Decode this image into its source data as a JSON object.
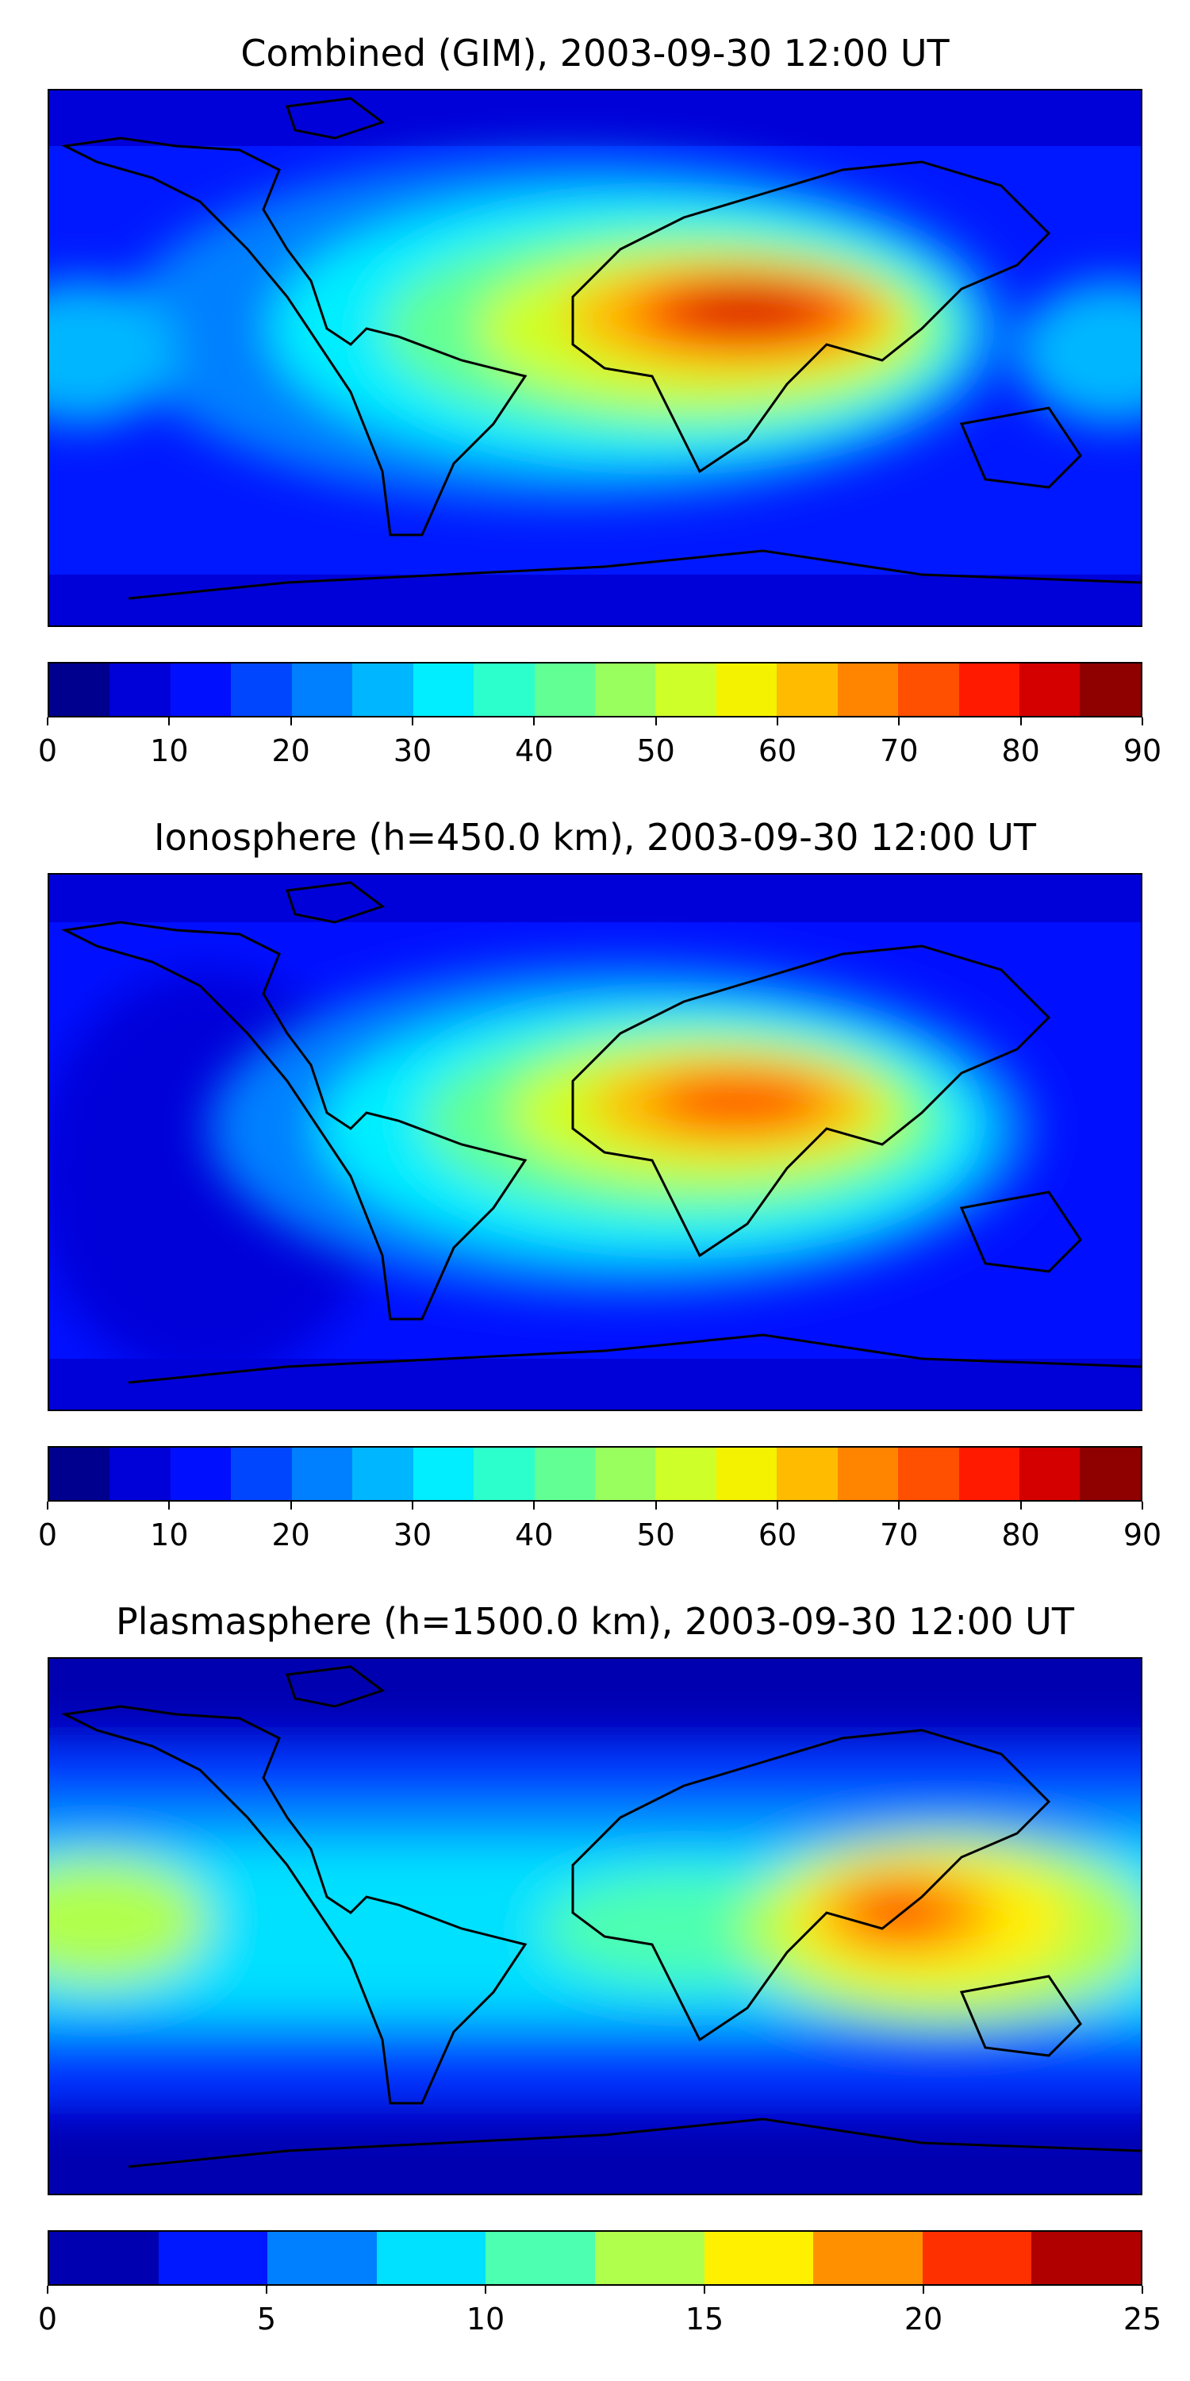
{
  "panels": [
    {
      "title": "Combined (GIM), 2003-09-30 12:00 UT",
      "colorbar": {
        "min": 0,
        "max": 90,
        "step": 5,
        "ticks": [
          "0",
          "10",
          "20",
          "30",
          "40",
          "50",
          "60",
          "70",
          "80",
          "90"
        ]
      }
    },
    {
      "title": "Ionosphere  (h=450.0 km), 2003-09-30 12:00 UT",
      "colorbar": {
        "min": 0,
        "max": 90,
        "step": 5,
        "ticks": [
          "0",
          "10",
          "20",
          "30",
          "40",
          "50",
          "60",
          "70",
          "80",
          "90"
        ]
      }
    },
    {
      "title": "Plasmasphere (h=1500.0 km), 2003-09-30 12:00 UT",
      "colorbar": {
        "min": 0,
        "max": 25,
        "step": 2.5,
        "ticks": [
          "0",
          "5",
          "10",
          "15",
          "20",
          "25"
        ]
      }
    }
  ],
  "colormaps": {
    "levels18": [
      "#00008f",
      "#0000d9",
      "#0010ff",
      "#0046ff",
      "#0080ff",
      "#00b7ff",
      "#00eeff",
      "#2cffcb",
      "#62ff94",
      "#99ff5e",
      "#cfff28",
      "#f5f200",
      "#ffbb00",
      "#ff8400",
      "#ff4f00",
      "#ff1a00",
      "#d40000",
      "#8f0000"
    ],
    "levels10": [
      "#0000b0",
      "#0018ff",
      "#0080ff",
      "#00e0ff",
      "#4dffb0",
      "#b0ff4d",
      "#fff000",
      "#ff9000",
      "#ff3000",
      "#b00000"
    ]
  },
  "colors": {
    "ocean_low": "#0010ff",
    "coastline": "#000000"
  }
}
